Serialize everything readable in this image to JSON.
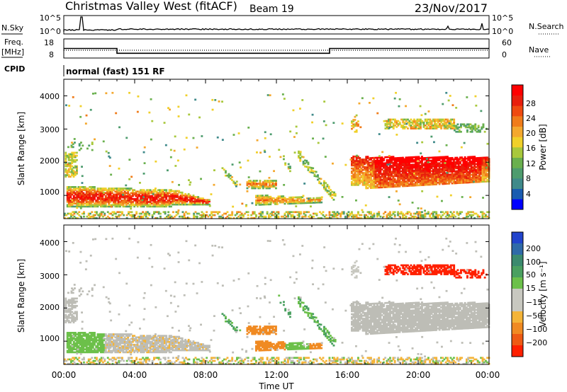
{
  "header": {
    "title": "Christmas Valley West (fitACF)",
    "beam": "Beam 19",
    "date": "23/Nov/2017"
  },
  "top_panels": {
    "nsky_label": "N.Sky",
    "nsky_ticks": [
      "10^5",
      "10^0"
    ],
    "nsearch_label": "N.Search",
    "nsearch_ticks": [
      "10^5",
      "10^0"
    ],
    "freq_label": "Freq.",
    "freq_unit": "[MHz]",
    "freq_ticks": [
      "18",
      "8"
    ],
    "nave_label": "Nave",
    "nave_ticks": [
      "60",
      "0"
    ],
    "cpid_label": "CPID",
    "cpid_text": "normal (fast) 151 RF"
  },
  "colors": {
    "power": [
      "#0000ff",
      "#1a5cb0",
      "#3f8a8a",
      "#4e9c6e",
      "#6ab04e",
      "#a8c83c",
      "#f0d02a",
      "#f4a82e",
      "#f07c1a",
      "#ef4a10",
      "#e81e0c",
      "#ff0000"
    ],
    "velocity": [
      "#2244cc",
      "#2f6aa8",
      "#3b8a6e",
      "#4aa060",
      "#6cc04a",
      "#c8c8c0",
      "#c8c8c0",
      "#f4b438",
      "#f08a22",
      "#ee5a14",
      "#ff2000"
    ],
    "ground_scatter": "#bdbdb6"
  },
  "chart_data": [
    {
      "type": "heatmap",
      "name": "Power",
      "ylabel": "Slant Range [km]",
      "xlabel": "Time UT",
      "yticks": [
        "1000",
        "2000",
        "3000",
        "4000"
      ],
      "xticks": [
        "00:00",
        "04:00",
        "08:00",
        "12:00",
        "16:00",
        "20:00",
        "00:00"
      ],
      "ylim": [
        300,
        4500
      ],
      "xlim": [
        0,
        24
      ],
      "colorbar_label": "Power [dB]",
      "colorbar_ticks": [
        "4",
        "8",
        "12",
        "16",
        "20",
        "24",
        "28"
      ],
      "colorbar_range": [
        0,
        30
      ]
    },
    {
      "type": "heatmap",
      "name": "Velocity",
      "ylabel": "Slant Range [km]",
      "xlabel": "Time UT",
      "yticks": [
        "1000",
        "2000",
        "3000",
        "4000"
      ],
      "xticks": [
        "00:00",
        "04:00",
        "08:00",
        "12:00",
        "16:00",
        "20:00",
        "00:00"
      ],
      "ylim": [
        300,
        4500
      ],
      "xlim": [
        0,
        24
      ],
      "colorbar_label": "Velocity [m s⁻¹]",
      "colorbar_ticks": [
        "200",
        "100",
        "50",
        "15",
        "−15",
        "−50",
        "−100",
        "−200"
      ]
    },
    {
      "type": "line",
      "name": "Frequency",
      "x": [
        0,
        3,
        3,
        15,
        15,
        24
      ],
      "y": [
        13,
        13,
        10.5,
        10.5,
        13,
        13
      ],
      "ylim": [
        8,
        18
      ]
    }
  ]
}
